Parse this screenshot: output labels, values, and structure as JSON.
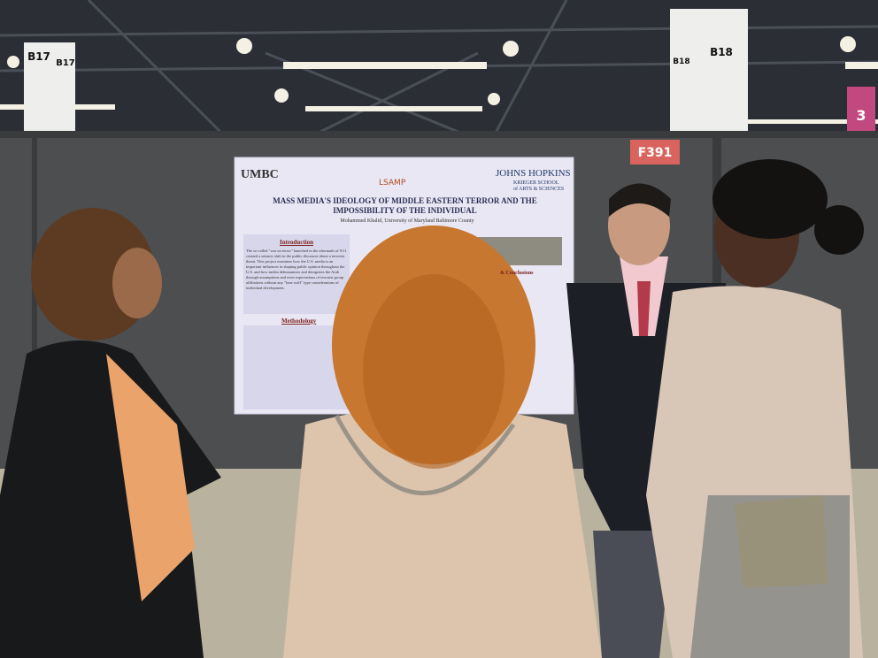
{
  "signs": [
    "B17",
    "B17",
    "B18",
    "B18",
    "F391",
    "3"
  ],
  "poster": {
    "logos": [
      "UMBC",
      "LSAMP",
      "JOHNS HOPKINS",
      "KRIEGER SCHOOL",
      "of ARTS & SCIENCES"
    ],
    "title": "MASS MEDIA'S IDEOLOGY OF MIDDLE EASTERN TERROR AND THE IMPOSSIBILITY OF THE INDIVIDUAL",
    "author": "Mohammed Khalid, University of Maryland Baltimore County",
    "sections": [
      "Introduction",
      "Methodology",
      "& Conclusions"
    ],
    "intro": "The so-called \"war on terror\" launched in the aftermath of 9/11 created a seismic shift in the public discourse about a terrorist threat. This project examines how the U.S. media is an important influencer in shaping public opinion throughout the U.S. and how media dehumanizes and denigrates the Arab through assumptions and even expectations of terrorist group affiliations without any \"lone wolf\" type considerations of individual development."
  }
}
